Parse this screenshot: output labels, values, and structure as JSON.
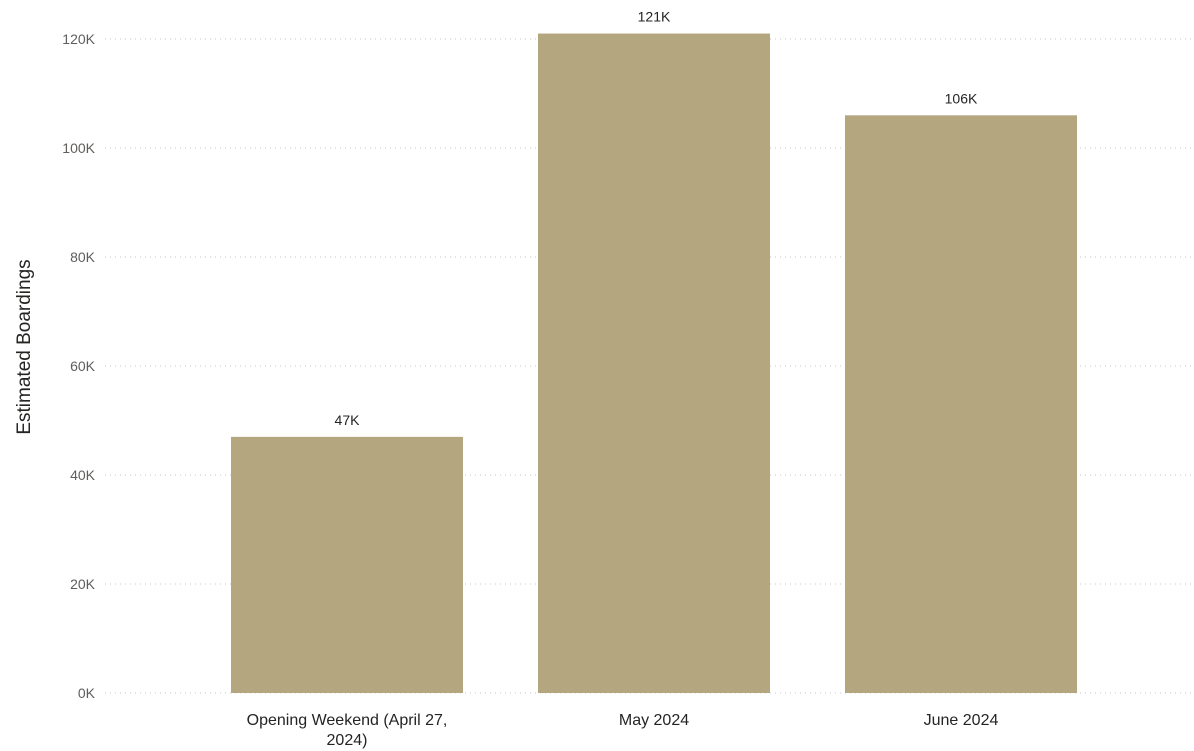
{
  "chart_data": {
    "type": "bar",
    "categories": [
      [
        "Opening Weekend (April 27,",
        "2024)"
      ],
      [
        "May 2024"
      ],
      [
        "June 2024"
      ]
    ],
    "values": [
      47000,
      121000,
      106000
    ],
    "data_labels": [
      "47K",
      "121K",
      "106K"
    ],
    "ylabel": "Estimated Boardings",
    "xlabel": "",
    "ylim": [
      0,
      120000
    ],
    "yticks": [
      0,
      20000,
      40000,
      60000,
      80000,
      100000,
      120000
    ],
    "ytick_labels": [
      "0K",
      "20K",
      "40K",
      "60K",
      "80K",
      "100K",
      "120K"
    ],
    "grid": true,
    "colors": {
      "bar": "#b4a77f"
    }
  }
}
